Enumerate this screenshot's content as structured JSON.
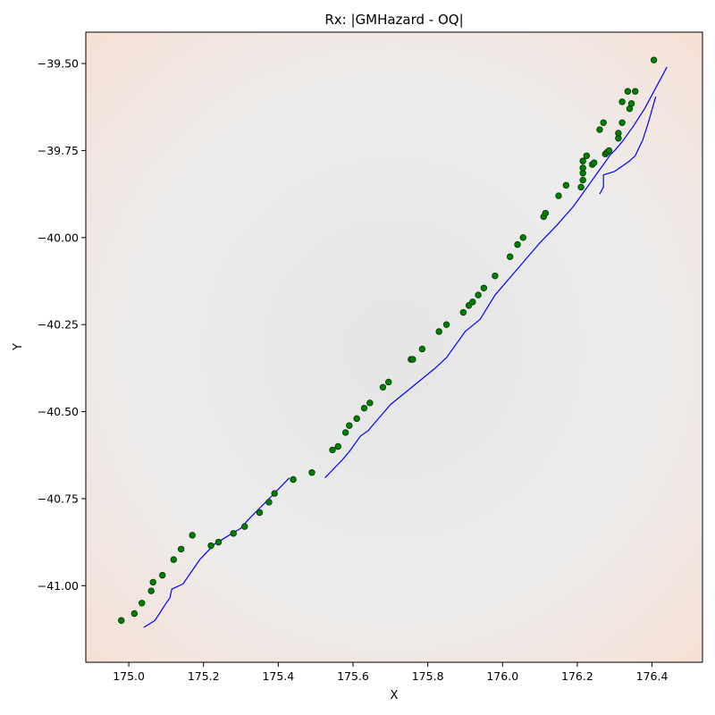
{
  "chart_data": {
    "type": "scatter",
    "title": "Rx: |GMHazard - OQ|",
    "xlabel": "X",
    "ylabel": "Y",
    "xlim": [
      174.885,
      176.535
    ],
    "ylim": [
      -41.22,
      -39.41
    ],
    "xticks": [
      175.0,
      175.2,
      175.4,
      175.6,
      175.8,
      176.0,
      176.2,
      176.4
    ],
    "xtick_labels": [
      "175.0",
      "175.2",
      "175.4",
      "175.6",
      "175.8",
      "176.0",
      "176.2",
      "176.4"
    ],
    "yticks": [
      -39.5,
      -39.75,
      -40.0,
      -40.25,
      -40.5,
      -40.75,
      -41.0
    ],
    "ytick_labels": [
      "−39.50",
      "−39.75",
      "−40.00",
      "−40.25",
      "−40.50",
      "−40.75",
      "−41.00"
    ],
    "grid": false,
    "background": "dense grid of small dots, gray near the fault trace and light orange toward the upper-left and lower-right corners",
    "colors": {
      "points": "#008000",
      "point_edge": "#003300",
      "lines": "#0000ff",
      "background_near": "#c8c8c8",
      "background_far": "#f0b49a"
    },
    "series": [
      {
        "type": "scatter",
        "points": [
          [
            174.98,
            -41.1
          ],
          [
            175.015,
            -41.08
          ],
          [
            175.035,
            -41.05
          ],
          [
            175.06,
            -41.015
          ],
          [
            175.065,
            -40.99
          ],
          [
            175.09,
            -40.97
          ],
          [
            175.12,
            -40.925
          ],
          [
            175.14,
            -40.895
          ],
          [
            175.17,
            -40.855
          ],
          [
            175.22,
            -40.885
          ],
          [
            175.24,
            -40.875
          ],
          [
            175.28,
            -40.85
          ],
          [
            175.31,
            -40.83
          ],
          [
            175.35,
            -40.79
          ],
          [
            175.375,
            -40.76
          ],
          [
            175.39,
            -40.735
          ],
          [
            175.44,
            -40.695
          ],
          [
            175.49,
            -40.675
          ],
          [
            175.545,
            -40.61
          ],
          [
            175.56,
            -40.6
          ],
          [
            175.58,
            -40.56
          ],
          [
            175.59,
            -40.54
          ],
          [
            175.61,
            -40.52
          ],
          [
            175.63,
            -40.49
          ],
          [
            175.645,
            -40.475
          ],
          [
            175.68,
            -40.43
          ],
          [
            175.695,
            -40.415
          ],
          [
            175.755,
            -40.35
          ],
          [
            175.76,
            -40.35
          ],
          [
            175.785,
            -40.32
          ],
          [
            175.83,
            -40.27
          ],
          [
            175.85,
            -40.25
          ],
          [
            175.895,
            -40.215
          ],
          [
            175.91,
            -40.195
          ],
          [
            175.92,
            -40.185
          ],
          [
            175.935,
            -40.165
          ],
          [
            175.95,
            -40.145
          ],
          [
            175.98,
            -40.11
          ],
          [
            176.02,
            -40.055
          ],
          [
            176.04,
            -40.02
          ],
          [
            176.055,
            -40.0
          ],
          [
            176.11,
            -39.94
          ],
          [
            176.115,
            -39.93
          ],
          [
            176.15,
            -39.88
          ],
          [
            176.17,
            -39.85
          ],
          [
            176.21,
            -39.855
          ],
          [
            176.215,
            -39.835
          ],
          [
            176.215,
            -39.815
          ],
          [
            176.215,
            -39.8
          ],
          [
            176.215,
            -39.78
          ],
          [
            176.225,
            -39.765
          ],
          [
            176.24,
            -39.79
          ],
          [
            176.245,
            -39.785
          ],
          [
            176.26,
            -39.69
          ],
          [
            176.27,
            -39.67
          ],
          [
            176.275,
            -39.76
          ],
          [
            176.28,
            -39.755
          ],
          [
            176.285,
            -39.75
          ],
          [
            176.31,
            -39.715
          ],
          [
            176.31,
            -39.7
          ],
          [
            176.32,
            -39.67
          ],
          [
            176.32,
            -39.61
          ],
          [
            176.335,
            -39.58
          ],
          [
            176.34,
            -39.63
          ],
          [
            176.345,
            -39.615
          ],
          [
            176.355,
            -39.58
          ],
          [
            176.405,
            -39.49
          ]
        ]
      },
      {
        "type": "line",
        "points": [
          [
            175.04,
            -41.12
          ],
          [
            175.07,
            -41.1
          ],
          [
            175.1,
            -41.05
          ],
          [
            175.11,
            -41.035
          ],
          [
            175.115,
            -41.01
          ],
          [
            175.145,
            -40.995
          ],
          [
            175.19,
            -40.925
          ],
          [
            175.23,
            -40.88
          ],
          [
            175.3,
            -40.835
          ],
          [
            175.32,
            -40.81
          ],
          [
            175.38,
            -40.745
          ],
          [
            175.43,
            -40.69
          ]
        ]
      },
      {
        "type": "line",
        "points": [
          [
            175.525,
            -40.69
          ],
          [
            175.57,
            -40.64
          ],
          [
            175.59,
            -40.615
          ],
          [
            175.62,
            -40.57
          ],
          [
            175.64,
            -40.555
          ],
          [
            175.7,
            -40.48
          ],
          [
            175.78,
            -40.41
          ],
          [
            175.82,
            -40.375
          ],
          [
            175.85,
            -40.345
          ],
          [
            175.9,
            -40.27
          ],
          [
            175.94,
            -40.235
          ],
          [
            175.96,
            -40.2
          ],
          [
            175.98,
            -40.165
          ],
          [
            176.04,
            -40.09
          ],
          [
            176.1,
            -40.015
          ],
          [
            176.145,
            -39.965
          ],
          [
            176.19,
            -39.91
          ],
          [
            176.23,
            -39.85
          ],
          [
            176.27,
            -39.79
          ],
          [
            176.29,
            -39.76
          ],
          [
            176.3,
            -39.75
          ],
          [
            176.32,
            -39.725
          ],
          [
            176.35,
            -39.68
          ],
          [
            176.38,
            -39.63
          ],
          [
            176.44,
            -39.51
          ]
        ]
      },
      {
        "type": "line",
        "points": [
          [
            176.26,
            -39.875
          ],
          [
            176.27,
            -39.855
          ],
          [
            176.27,
            -39.82
          ],
          [
            176.3,
            -39.81
          ],
          [
            176.34,
            -39.78
          ],
          [
            176.355,
            -39.765
          ],
          [
            176.375,
            -39.72
          ],
          [
            176.39,
            -39.67
          ],
          [
            176.41,
            -39.595
          ]
        ]
      }
    ]
  }
}
